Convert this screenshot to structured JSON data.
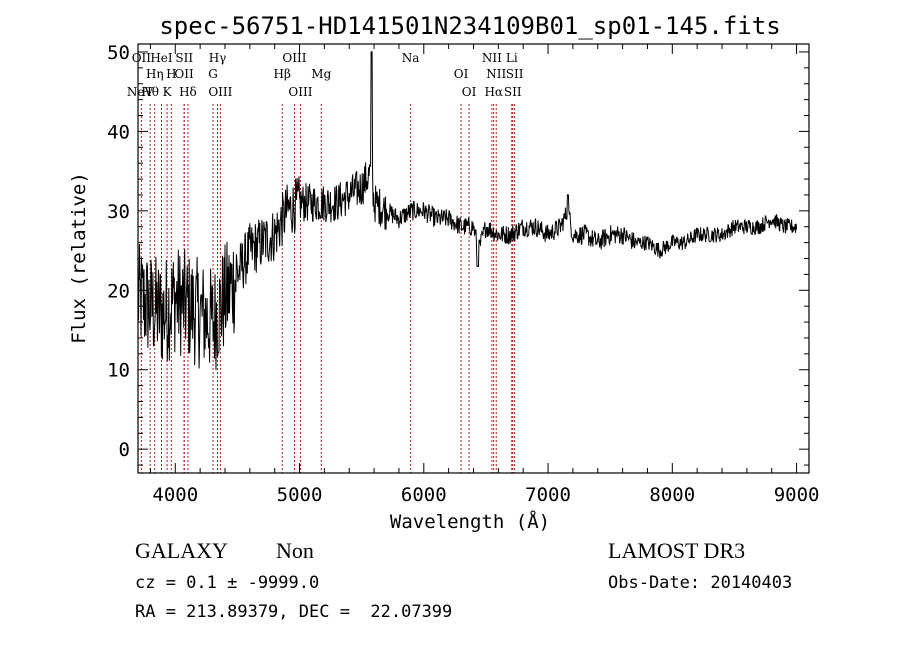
{
  "chart_data": {
    "type": "line",
    "title": "spec-56751-HD141501N234109B01_sp01-145.fits",
    "xlabel": "Wavelength (Å)",
    "ylabel": "Flux (relative)",
    "xlim": [
      3700,
      9100
    ],
    "ylim": [
      -3,
      51
    ],
    "xticks": [
      4000,
      5000,
      6000,
      7000,
      8000,
      9000
    ],
    "yticks": [
      0,
      10,
      20,
      30,
      40,
      50
    ],
    "series": [
      {
        "name": "flux",
        "color": "#000000",
        "x": [
          3700,
          3800,
          3900,
          4000,
          4100,
          4200,
          4300,
          4400,
          4500,
          4600,
          4700,
          4800,
          4900,
          5000,
          5100,
          5200,
          5300,
          5400,
          5500,
          5580,
          5600,
          5700,
          5800,
          5900,
          6000,
          6100,
          6200,
          6300,
          6400,
          6440,
          6500,
          6600,
          6700,
          6800,
          6900,
          7000,
          7100,
          7160,
          7200,
          7300,
          7400,
          7500,
          7600,
          7700,
          7800,
          7900,
          8000,
          8100,
          8200,
          8300,
          8400,
          8500,
          8600,
          8700,
          8800,
          8900,
          9000
        ],
        "y": [
          19,
          18,
          17,
          19,
          18,
          17,
          16,
          19,
          22,
          25,
          26,
          27,
          30,
          31,
          31,
          31,
          31,
          32,
          33,
          35,
          31,
          30,
          29,
          30,
          30,
          29,
          29,
          28,
          28,
          25,
          28,
          27,
          27,
          28,
          28,
          27,
          28,
          30,
          27,
          27,
          26,
          27,
          27,
          26,
          26,
          25,
          26,
          26,
          27,
          27,
          27,
          28,
          28,
          28,
          29,
          28,
          28
        ]
      }
    ],
    "spectral_lines": [
      {
        "label": "NeV",
        "wavelength": 3426,
        "row": 3
      },
      {
        "label": "OII",
        "wavelength": 3727,
        "row": 1
      },
      {
        "label": "OII",
        "wavelength": 4071,
        "row": 2
      },
      {
        "label": "Hθ",
        "wavelength": 3798,
        "row": 3
      },
      {
        "label": "HeI",
        "wavelength": 3889,
        "row": 1
      },
      {
        "label": "Hη",
        "wavelength": 3835,
        "row": 2
      },
      {
        "label": "K",
        "wavelength": 3934,
        "row": 3
      },
      {
        "label": "H",
        "wavelength": 3968,
        "row": 2
      },
      {
        "label": "SII",
        "wavelength": 4072,
        "row": 1
      },
      {
        "label": "Hδ",
        "wavelength": 4102,
        "row": 3
      },
      {
        "label": "Hγ",
        "wavelength": 4340,
        "row": 1
      },
      {
        "label": "G",
        "wavelength": 4304,
        "row": 2
      },
      {
        "label": "OIII",
        "wavelength": 4363,
        "row": 3
      },
      {
        "label": "Hβ",
        "wavelength": 4861,
        "row": 2
      },
      {
        "label": "OIII",
        "wavelength": 4959,
        "row": 1
      },
      {
        "label": "OIII",
        "wavelength": 5007,
        "row": 3
      },
      {
        "label": "Mg",
        "wavelength": 5175,
        "row": 2
      },
      {
        "label": "Na",
        "wavelength": 5894,
        "row": 1
      },
      {
        "label": "OI",
        "wavelength": 6300,
        "row": 2
      },
      {
        "label": "OI",
        "wavelength": 6364,
        "row": 3
      },
      {
        "label": "NII",
        "wavelength": 6548,
        "row": 1
      },
      {
        "label": "NII",
        "wavelength": 6583,
        "row": 2
      },
      {
        "label": "Hα",
        "wavelength": 6563,
        "row": 3
      },
      {
        "label": "SII",
        "wavelength": 6716,
        "row": 3
      },
      {
        "label": "SII",
        "wavelength": 6731,
        "row": 2
      },
      {
        "label": "Li",
        "wavelength": 6708,
        "row": 1
      }
    ]
  },
  "footer": {
    "class_label": "GALAXY",
    "subclass": "Non",
    "survey": "LAMOST DR3",
    "cz_line": "cz = 0.1 ± -9999.0",
    "obs_date": "Obs-Date: 20140403",
    "coords": "RA = 213.89379, DEC =  22.07399"
  }
}
